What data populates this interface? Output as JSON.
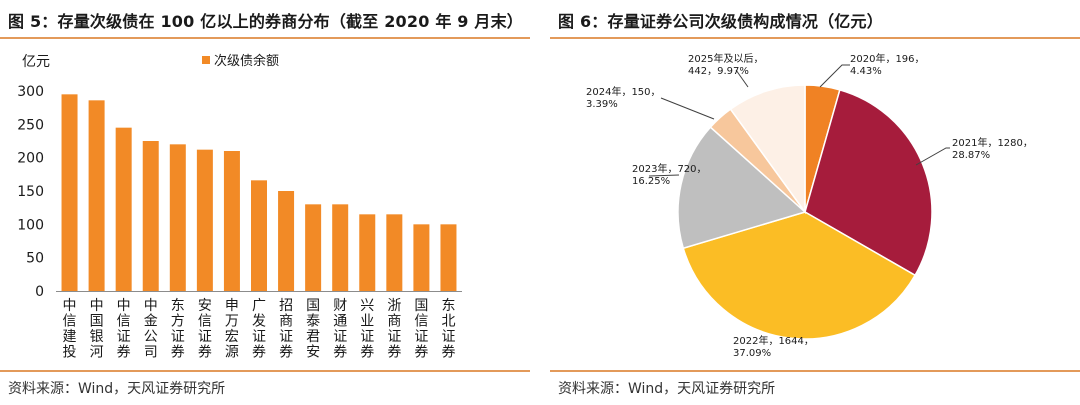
{
  "left": {
    "title": "图 5：存量次级债在 100 亿以上的券商分布（截至 2020 年 9 月末）",
    "source": "资料来源：Wind，天风证券研究所"
  },
  "right": {
    "title": "图 6：存量证券公司次级债构成情况（亿元）",
    "source": "资料来源：Wind，天风证券研究所"
  },
  "colors": {
    "accent": "#f28a26",
    "rule": "#e39a5a",
    "pie": [
      "#f08224",
      "#a61c3c",
      "#fbbd25",
      "#bfbfbf",
      "#f7c79c",
      "#fdf0e6"
    ]
  },
  "chart_data": [
    {
      "type": "bar",
      "ylabel": "亿元",
      "ylim": [
        0,
        300
      ],
      "yticks": [
        "0",
        "50",
        "100",
        "150",
        "200",
        "250",
        "300"
      ],
      "series": [
        {
          "name": "次级债余额",
          "values": [
            295,
            286,
            245,
            225,
            220,
            212,
            210,
            166,
            150,
            130,
            130,
            115,
            115,
            100,
            100
          ]
        }
      ],
      "categories": [
        "中信建投",
        "中国银河",
        "中信证券",
        "中金公司",
        "东方证券",
        "安信证券",
        "申万宏源",
        "广发证券",
        "招商证券",
        "国泰君安",
        "财通证券",
        "兴业证券",
        "浙商证券",
        "国信证券",
        "东北证券"
      ],
      "grid": false,
      "legend": "top"
    },
    {
      "type": "pie",
      "slices": [
        {
          "label": "2020年，196，4.43%",
          "value": 196
        },
        {
          "label": "2021年，1280，28.87%",
          "value": 1280
        },
        {
          "label": "2022年，1644，37.09%",
          "value": 1644
        },
        {
          "label": "2023年，720，16.25%",
          "value": 720
        },
        {
          "label": "2024年，150，3.39%",
          "value": 150
        },
        {
          "label": "2025年及以后，442，9.97%",
          "value": 442
        }
      ],
      "label_lines": [
        [
          "2020年，196，",
          "4.43%"
        ],
        [
          "2021年，1280，",
          "28.87%"
        ],
        [
          "2022年，1644，",
          "37.09%"
        ],
        [
          "2023年，720，",
          "16.25%"
        ],
        [
          "2024年，150，",
          "3.39%"
        ],
        [
          "2025年及以后，",
          "442，9.97%"
        ]
      ]
    }
  ]
}
